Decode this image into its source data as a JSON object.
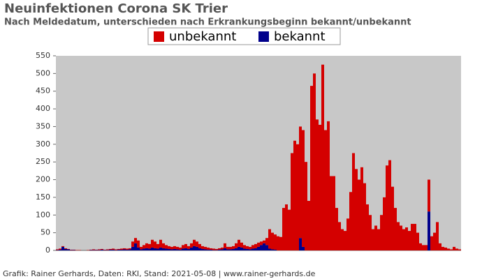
{
  "chart_data": {
    "type": "stacked_bar",
    "title": "Neuinfektionen Corona SK Trier",
    "subtitle": "Nach Meldedatum, unterschieden nach Erkrankungsbeginn bekannt/unbekannt",
    "footer": "Grafik: Rainer Gerhards, Daten: RKI, Stand: 2021-05-08 | www.rainer-gerhards.de",
    "ylim": [
      0,
      550
    ],
    "yticks": [
      0,
      50,
      100,
      150,
      200,
      250,
      300,
      350,
      400,
      450,
      500,
      550
    ],
    "background": "#c8c8c8",
    "series": [
      {
        "name": "bekannt",
        "color": "#00008b",
        "values": [
          1,
          2,
          10,
          4,
          3,
          1,
          1,
          0,
          0,
          0,
          0,
          0,
          1,
          1,
          1,
          1,
          2,
          1,
          1,
          2,
          2,
          1,
          2,
          2,
          3,
          2,
          3,
          10,
          20,
          8,
          3,
          5,
          6,
          5,
          8,
          6,
          5,
          8,
          6,
          5,
          4,
          3,
          4,
          3,
          2,
          5,
          6,
          4,
          8,
          12,
          10,
          6,
          4,
          3,
          2,
          2,
          1,
          1,
          2,
          3,
          6,
          3,
          3,
          4,
          6,
          10,
          8,
          5,
          4,
          3,
          5,
          6,
          10,
          15,
          20,
          15,
          5,
          3,
          2,
          0,
          0,
          0,
          0,
          0,
          0,
          0,
          0,
          35,
          10,
          0,
          0,
          0,
          0,
          0,
          0,
          0,
          0,
          0,
          0,
          0,
          0,
          0,
          0,
          0,
          0,
          0,
          0,
          0,
          0,
          0,
          0,
          0,
          0,
          0,
          0,
          0,
          0,
          0,
          0,
          0,
          0,
          0,
          0,
          0,
          0,
          0,
          0,
          0,
          0,
          0,
          0,
          0,
          0,
          110,
          0,
          0,
          0,
          0,
          0,
          0,
          0,
          0,
          0,
          0,
          0
        ]
      },
      {
        "name": "unbekannt",
        "color": "#d40000",
        "values": [
          2,
          3,
          2,
          2,
          1,
          1,
          1,
          1,
          1,
          0,
          0,
          1,
          1,
          2,
          1,
          2,
          2,
          1,
          2,
          2,
          3,
          2,
          2,
          3,
          3,
          3,
          3,
          15,
          15,
          20,
          7,
          10,
          14,
          13,
          22,
          19,
          13,
          22,
          14,
          10,
          8,
          7,
          8,
          7,
          6,
          10,
          12,
          8,
          12,
          18,
          15,
          12,
          8,
          7,
          6,
          4,
          4,
          3,
          4,
          5,
          14,
          7,
          7,
          8,
          14,
          20,
          14,
          10,
          8,
          7,
          10,
          12,
          12,
          10,
          8,
          20,
          55,
          47,
          43,
          40,
          38,
          120,
          130,
          115,
          275,
          310,
          300,
          315,
          330,
          250,
          140,
          465,
          500,
          370,
          355,
          525,
          340,
          365,
          210,
          210,
          120,
          80,
          60,
          55,
          90,
          165,
          275,
          230,
          200,
          235,
          190,
          130,
          100,
          60,
          70,
          60,
          100,
          150,
          240,
          255,
          180,
          120,
          80,
          70,
          60,
          65,
          55,
          75,
          75,
          50,
          20,
          15,
          15,
          90,
          40,
          50,
          80,
          20,
          10,
          8,
          5,
          3,
          10,
          5,
          3
        ]
      }
    ]
  }
}
